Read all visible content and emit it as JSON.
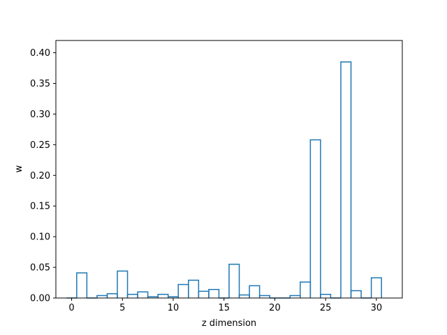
{
  "chart_data": {
    "type": "bar",
    "style": "step-histogram",
    "xlabel": "z dimension",
    "ylabel": "w",
    "xlim": [
      -1.55,
      32.55
    ],
    "ylim": [
      0,
      0.42
    ],
    "xticks": [
      0,
      5,
      10,
      15,
      20,
      25,
      30
    ],
    "yticks": [
      0.0,
      0.05,
      0.1,
      0.15,
      0.2,
      0.25,
      0.3,
      0.35,
      0.4
    ],
    "color": "#1f77b4",
    "grid": false,
    "categories": [
      0,
      1,
      2,
      3,
      4,
      5,
      6,
      7,
      8,
      9,
      10,
      11,
      12,
      13,
      14,
      15,
      16,
      17,
      18,
      19,
      20,
      21,
      22,
      23,
      24,
      25,
      26,
      27,
      28,
      29,
      30
    ],
    "values": [
      0.0,
      0.041,
      0.0,
      0.004,
      0.007,
      0.044,
      0.006,
      0.01,
      0.002,
      0.006,
      0.002,
      0.022,
      0.029,
      0.011,
      0.014,
      0.0,
      0.055,
      0.005,
      0.02,
      0.004,
      0.0,
      0.0,
      0.004,
      0.026,
      0.258,
      0.006,
      0.0,
      0.385,
      0.012,
      0.0,
      0.033
    ]
  }
}
